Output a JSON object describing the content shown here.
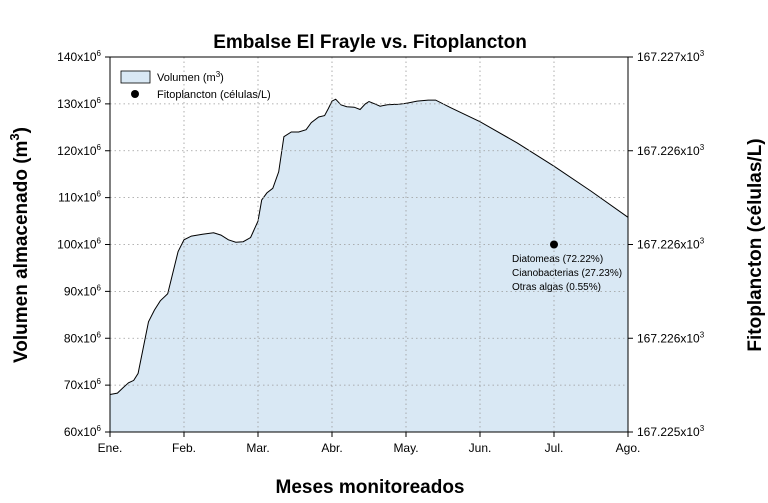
{
  "chart_data": {
    "type": "area",
    "title": "Embalse El Frayle vs. Fitoplancton",
    "xlabel": "Meses monitoreados",
    "ylabel": "Volumen almacenado (m",
    "ylabel_sup": "3",
    "ylabel_close": ")",
    "y2label": "Fitoplancton (células/L)",
    "x_categories": [
      "Ene.",
      "Feb.",
      "Mar.",
      "Abr.",
      "May.",
      "Jun.",
      "Jul.",
      "Ago."
    ],
    "xlim": [
      0,
      7
    ],
    "ylim": [
      60,
      140
    ],
    "y_ticks": [
      {
        "value": 60,
        "base": "60x10",
        "exp": "6"
      },
      {
        "value": 70,
        "base": "70x10",
        "exp": "6"
      },
      {
        "value": 80,
        "base": "80x10",
        "exp": "6"
      },
      {
        "value": 90,
        "base": "90x10",
        "exp": "6"
      },
      {
        "value": 100,
        "base": "100x10",
        "exp": "6"
      },
      {
        "value": 110,
        "base": "110x10",
        "exp": "6"
      },
      {
        "value": 120,
        "base": "120x10",
        "exp": "6"
      },
      {
        "value": 130,
        "base": "130x10",
        "exp": "6"
      },
      {
        "value": 140,
        "base": "140x10",
        "exp": "6"
      }
    ],
    "y2_ticks": [
      {
        "value": 60,
        "base": "167.225x10",
        "exp": "3"
      },
      {
        "value": 80,
        "base": "167.226x10",
        "exp": "3"
      },
      {
        "value": 100,
        "base": "167.226x10",
        "exp": "3"
      },
      {
        "value": 120,
        "base": "167.226x10",
        "exp": "3"
      },
      {
        "value": 140,
        "base": "167.227x10",
        "exp": "3"
      }
    ],
    "grid": true,
    "legend": {
      "placement": "top-left",
      "items": [
        {
          "label": "Volumen (m",
          "sup": "3",
          "close": ")",
          "kind": "area"
        },
        {
          "label": "Fitoplancton (células/L)",
          "kind": "point"
        }
      ]
    },
    "series": [
      {
        "kind": "area",
        "fill": "#d9e8f4",
        "stroke": "#000000",
        "points": [
          [
            0.0,
            68.0
          ],
          [
            0.1,
            68.3
          ],
          [
            0.18,
            69.5
          ],
          [
            0.25,
            70.5
          ],
          [
            0.32,
            71.0
          ],
          [
            0.38,
            72.5
          ],
          [
            0.45,
            78.0
          ],
          [
            0.52,
            83.5
          ],
          [
            0.6,
            86.0
          ],
          [
            0.68,
            88.0
          ],
          [
            0.78,
            89.5
          ],
          [
            0.85,
            94.0
          ],
          [
            0.92,
            98.5
          ],
          [
            1.0,
            101.0
          ],
          [
            1.1,
            101.8
          ],
          [
            1.25,
            102.2
          ],
          [
            1.4,
            102.5
          ],
          [
            1.5,
            102.0
          ],
          [
            1.6,
            101.0
          ],
          [
            1.7,
            100.5
          ],
          [
            1.8,
            100.6
          ],
          [
            1.9,
            101.5
          ],
          [
            2.0,
            105.0
          ],
          [
            2.05,
            109.5
          ],
          [
            2.12,
            111.0
          ],
          [
            2.2,
            112.0
          ],
          [
            2.28,
            115.5
          ],
          [
            2.35,
            123.0
          ],
          [
            2.45,
            124.0
          ],
          [
            2.55,
            124.0
          ],
          [
            2.65,
            124.5
          ],
          [
            2.72,
            126.0
          ],
          [
            2.82,
            127.2
          ],
          [
            2.9,
            127.5
          ],
          [
            2.95,
            129.0
          ],
          [
            3.0,
            130.6
          ],
          [
            3.05,
            131.0
          ],
          [
            3.12,
            129.8
          ],
          [
            3.2,
            129.4
          ],
          [
            3.3,
            129.3
          ],
          [
            3.38,
            128.8
          ],
          [
            3.45,
            130.0
          ],
          [
            3.5,
            130.5
          ],
          [
            3.58,
            130.0
          ],
          [
            3.65,
            129.5
          ],
          [
            3.75,
            129.8
          ],
          [
            3.9,
            129.9
          ],
          [
            4.0,
            130.1
          ],
          [
            4.15,
            130.6
          ],
          [
            4.3,
            130.8
          ],
          [
            4.4,
            130.8
          ],
          [
            4.6,
            129.2
          ],
          [
            5.0,
            126.2
          ],
          [
            5.5,
            121.7
          ],
          [
            6.0,
            116.7
          ],
          [
            6.5,
            111.4
          ],
          [
            7.0,
            105.8
          ]
        ]
      },
      {
        "kind": "point",
        "name": "Fitoplancton (células/L)",
        "color": "#000000",
        "points": [
          [
            6.0,
            100.0
          ]
        ]
      }
    ],
    "annotations": [
      "Diatomeas (72.22%)",
      "Cianobacterias (27.23%)",
      "Otras algas (0.55%)"
    ]
  }
}
